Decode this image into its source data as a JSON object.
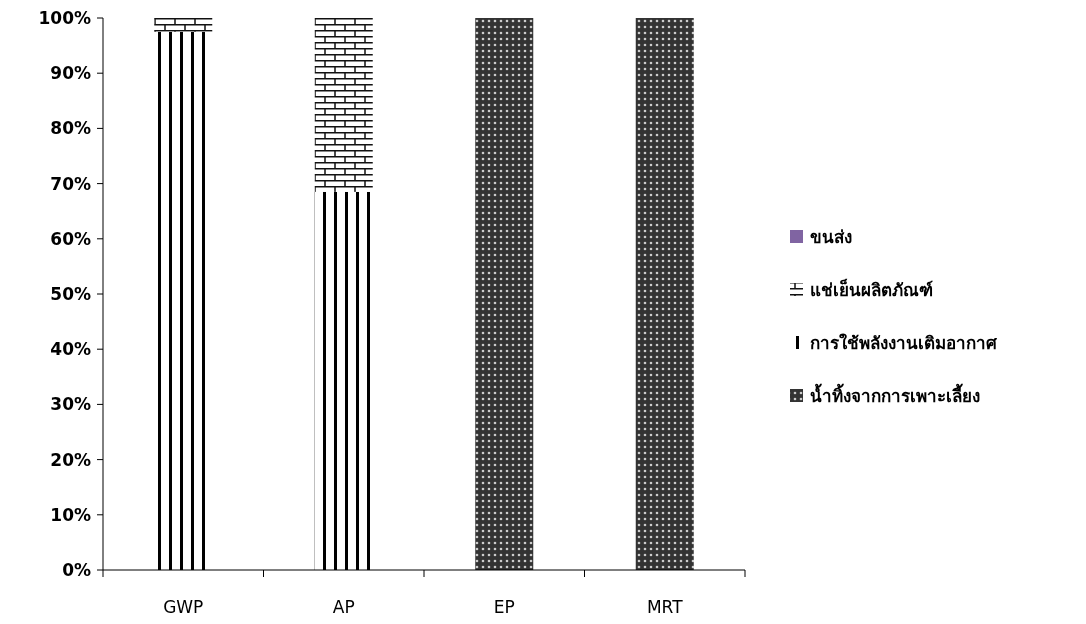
{
  "chart_data": {
    "type": "bar",
    "stacked": true,
    "categories": [
      "GWP",
      "AP",
      "EP",
      "MRT"
    ],
    "ylim": [
      0,
      100
    ],
    "yticks": [
      {
        "value": 0,
        "label": "0%"
      },
      {
        "value": 10,
        "label": "10%"
      },
      {
        "value": 20,
        "label": "20%"
      },
      {
        "value": 30,
        "label": "30%"
      },
      {
        "value": 40,
        "label": "40%"
      },
      {
        "value": 50,
        "label": "50%"
      },
      {
        "value": 60,
        "label": "60%"
      },
      {
        "value": 70,
        "label": "70%"
      },
      {
        "value": 80,
        "label": "80%"
      },
      {
        "value": 90,
        "label": "90%"
      },
      {
        "value": 100,
        "label": "100%"
      }
    ],
    "legend": "right",
    "grid": false,
    "series": [
      {
        "name": "น้ำทิ้งจากการเพาะเลี้ยง",
        "color": "#333333",
        "values": [
          0,
          0,
          100,
          100
        ]
      },
      {
        "name": "การใช้พลังงานเติมอากาศ",
        "color": "#000000",
        "values": [
          97.5,
          68.5,
          0,
          0
        ]
      },
      {
        "name": "แช่เย็นผลิตภัณฑ์",
        "color": "#111111",
        "values": [
          2.5,
          31.5,
          0,
          0
        ]
      },
      {
        "name": "ขนส่ง",
        "color": "#8064a2",
        "values": [
          0,
          0,
          0,
          0
        ]
      }
    ]
  }
}
